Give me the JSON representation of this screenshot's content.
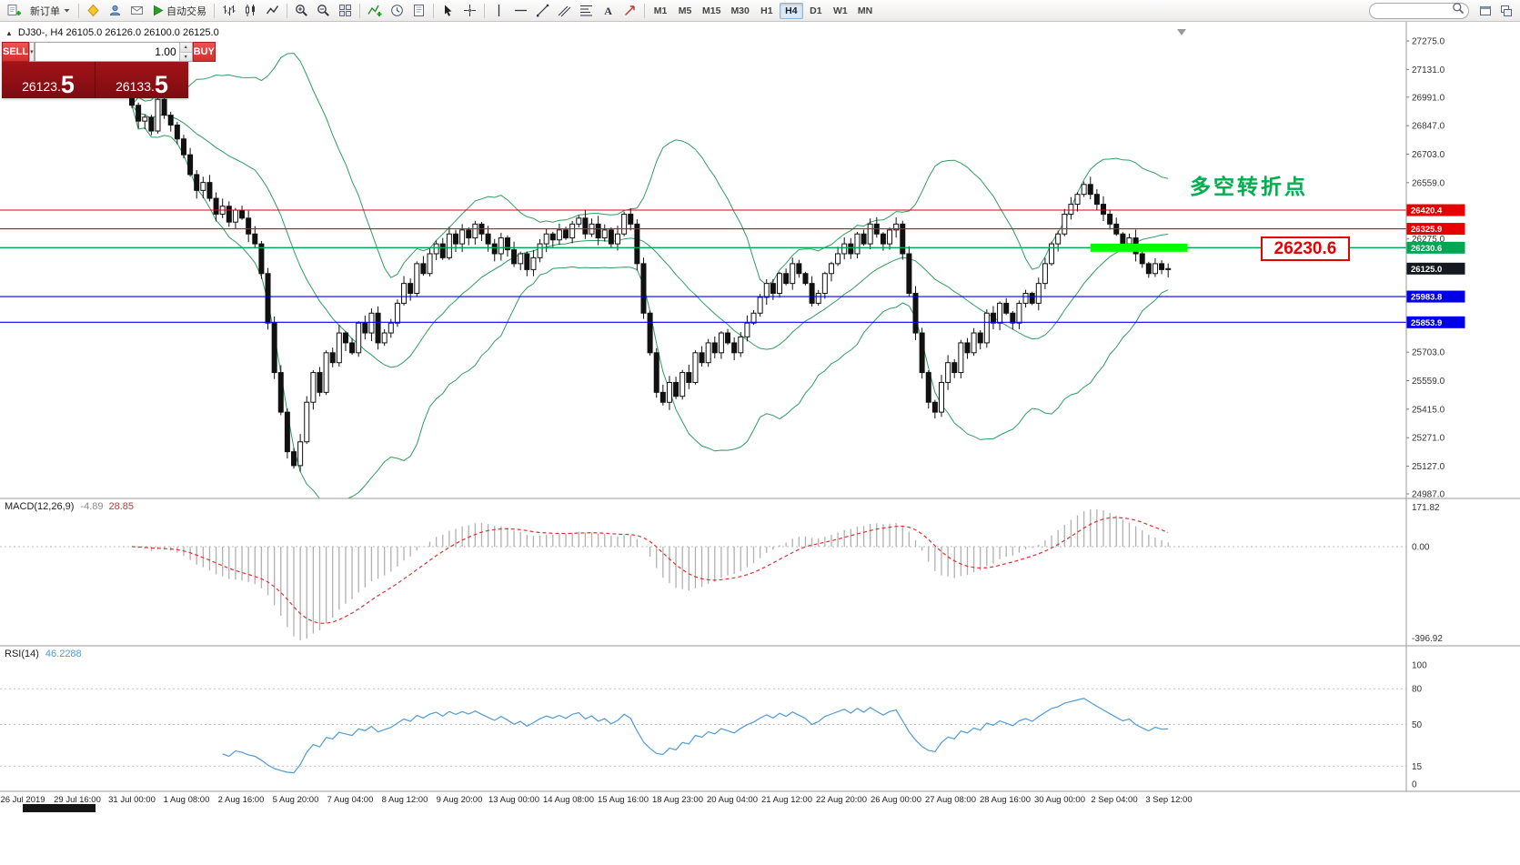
{
  "toolbar": {
    "groups": [
      {
        "items": [
          {
            "name": "new-order-icon-button",
            "icon": "neworder"
          },
          {
            "name": "new-order-button",
            "label": "新订单",
            "caret": true
          }
        ]
      },
      {
        "items": [
          {
            "name": "metaeditor-button",
            "icon": "editor"
          },
          {
            "name": "profiles-button",
            "icon": "profile"
          },
          {
            "name": "mailbox-button",
            "icon": "mail"
          },
          {
            "name": "autotrading-button",
            "icon": "play",
            "label": "自动交易"
          }
        ]
      },
      {
        "items": [
          {
            "name": "bar-chart-button",
            "icon": "barchart"
          },
          {
            "name": "candle-chart-button",
            "icon": "candles"
          },
          {
            "name": "line-chart-button",
            "icon": "linechart"
          }
        ]
      },
      {
        "items": [
          {
            "name": "zoom-in-button",
            "icon": "zoomin"
          },
          {
            "name": "zoom-out-button",
            "icon": "zoomout"
          },
          {
            "name": "tile-windows-button",
            "icon": "tile"
          }
        ]
      },
      {
        "items": [
          {
            "name": "indicators-button",
            "icon": "indicator"
          },
          {
            "name": "periods-button",
            "icon": "clock"
          },
          {
            "name": "templates-button",
            "icon": "template"
          }
        ]
      },
      {
        "items": [
          {
            "name": "cursor-button",
            "icon": "cursor"
          },
          {
            "name": "crosshair-button",
            "icon": "crosshair"
          }
        ]
      },
      {
        "items": [
          {
            "name": "vertical-line-button",
            "icon": "vline"
          },
          {
            "name": "horizontal-line-button",
            "icon": "hline"
          },
          {
            "name": "trendline-button",
            "icon": "trend"
          },
          {
            "name": "equidistant-channel-button",
            "icon": "channel"
          },
          {
            "name": "fibonacci-button",
            "icon": "fib"
          },
          {
            "name": "text-label-button",
            "icon": "text"
          },
          {
            "name": "arrows-button",
            "icon": "arrows"
          }
        ]
      }
    ],
    "timeframes": [
      "M1",
      "M5",
      "M15",
      "M30",
      "H1",
      "H4",
      "D1",
      "W1",
      "MN"
    ],
    "active_timeframe": "H4",
    "search_value": "",
    "right_items": [
      {
        "name": "window-restore-button",
        "icon": "winsmall"
      },
      {
        "name": "window-list-button",
        "icon": "winlist"
      }
    ]
  },
  "chart": {
    "info": "DJ30-, H4  26105.0 26126.0 26100.0 26125.0"
  },
  "trade_panel": {
    "sell_label": "SELL",
    "buy_label": "BUY",
    "volume": "1.00",
    "sell_price_main": "26123.",
    "sell_price_big": "5",
    "buy_price_main": "26133.",
    "buy_price_big": "5"
  },
  "annotations": {
    "turning_point": "多空转折点",
    "price_callout": "26230.6"
  },
  "chart_data": {
    "type": "candlestick",
    "symbol": "DJ30-",
    "timeframe": "H4",
    "closes": [
      26950,
      26870,
      26890,
      26820,
      26980,
      26900,
      26850,
      26780,
      26700,
      26600,
      26520,
      26560,
      26480,
      26400,
      26440,
      26360,
      26420,
      26380,
      26300,
      26250,
      26100,
      25850,
      25600,
      25400,
      25200,
      25130,
      25250,
      25450,
      25600,
      25500,
      25700,
      25650,
      25800,
      25750,
      25700,
      25850,
      25800,
      25900,
      25750,
      25800,
      25850,
      25950,
      26050,
      26000,
      26150,
      26100,
      26200,
      26250,
      26180,
      26300,
      26250,
      26320,
      26280,
      26350,
      26300,
      26250,
      26200,
      26280,
      26220,
      26150,
      26200,
      26120,
      26180,
      26250,
      26300,
      26270,
      26320,
      26280,
      26350,
      26380,
      26300,
      26350,
      26280,
      26320,
      26250,
      26300,
      26400,
      26350,
      26150,
      25900,
      25700,
      25500,
      25450,
      25550,
      25480,
      25600,
      25550,
      25700,
      25650,
      25750,
      25700,
      25800,
      25750,
      25700,
      25780,
      25850,
      25900,
      25980,
      26050,
      26000,
      26100,
      26050,
      26150,
      26100,
      26050,
      25950,
      26000,
      26100,
      26150,
      26200,
      26250,
      26200,
      26300,
      26250,
      26350,
      26300,
      26250,
      26320,
      26350,
      26200,
      26000,
      25800,
      25600,
      25450,
      25400,
      25550,
      25650,
      25600,
      25750,
      25700,
      25800,
      25750,
      25900,
      25850,
      25950,
      25900,
      25850,
      25950,
      26000,
      25950,
      26050,
      26150,
      26250,
      26300,
      26400,
      26450,
      26500,
      26550,
      26500,
      26450,
      26400,
      26350,
      26300,
      26250,
      26280,
      26200,
      26150,
      26100,
      26150,
      26120,
      26125
    ],
    "price_axis": {
      "ticks": [
        27275,
        27131,
        26991,
        26847,
        26703,
        26559,
        26275,
        25703,
        25559,
        25415,
        25271,
        25127,
        24987
      ],
      "min": 24987,
      "max": 27275
    },
    "hlines": [
      {
        "price": 26420.4,
        "color": "#e60000",
        "label": "26420.4"
      },
      {
        "price": 26325.9,
        "color": "#e60000",
        "label": "26325.9"
      },
      {
        "price": 26230.6,
        "color": "#00a651",
        "label": "26230.6"
      },
      {
        "price": 25983.8,
        "color": "#0000e6",
        "label": "25983.8"
      },
      {
        "price": 25853.9,
        "color": "#0000e6",
        "label": "25853.9"
      }
    ],
    "current_price": {
      "value": 26125.0,
      "label": "26125.0",
      "color": "#14181f"
    },
    "green_zone": {
      "price": 26230.6,
      "from_bar": 148,
      "to_bar": 163,
      "color": "#00ff00"
    },
    "indicators": {
      "bollinger": {
        "period": 20,
        "deviation": 2,
        "color": "#2f9e60"
      },
      "macd": {
        "label": "MACD(12,26,9)",
        "fast": 12,
        "slow": 26,
        "signal": 9,
        "value": "-4.89",
        "signal_value": "28.85",
        "scale_labels": [
          "171.82",
          "0.00",
          "-396.92"
        ]
      },
      "rsi": {
        "label": "RSI(14)",
        "period": 14,
        "value": "46.2288",
        "levels": [
          80,
          50,
          15
        ],
        "scale_labels": [
          {
            "v": 100,
            "t": "100"
          },
          {
            "v": 80,
            "t": "80"
          },
          {
            "v": 50,
            "t": "50"
          },
          {
            "v": 15,
            "t": "15"
          },
          {
            "v": 0,
            "t": "0"
          }
        ]
      }
    },
    "time_axis": [
      "26 Jul 2019",
      "29 Jul 16:00",
      "31 Jul 00:00",
      "1 Aug 08:00",
      "2 Aug 16:00",
      "5 Aug 20:00",
      "7 Aug 04:00",
      "8 Aug 12:00",
      "9 Aug 20:00",
      "13 Aug 00:00",
      "14 Aug 08:00",
      "15 Aug 16:00",
      "18 Aug 23:00",
      "20 Aug 04:00",
      "21 Aug 12:00",
      "22 Aug 20:00",
      "26 Aug 00:00",
      "27 Aug 08:00",
      "28 Aug 16:00",
      "30 Aug 00:00",
      "2 Sep 04:00",
      "3 Sep 12:00"
    ]
  }
}
